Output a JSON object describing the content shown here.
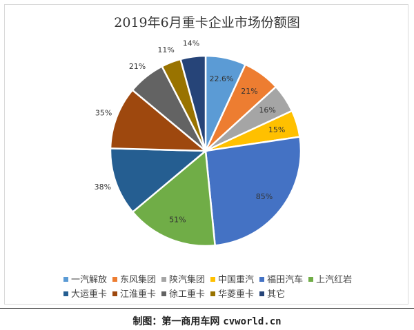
{
  "chart_data": {
    "type": "pie",
    "title": "2019年6月重卡企业市场份额图",
    "legend_position": "bottom",
    "slices": [
      {
        "name": "一汽解放",
        "value": 22.6,
        "label": "22.6%",
        "color": "#5B9BD5",
        "label_placement": "inside"
      },
      {
        "name": "东风集团",
        "value": 21,
        "label": "21%",
        "color": "#ED7D31",
        "label_placement": "inside"
      },
      {
        "name": "陕汽集团",
        "value": 16,
        "label": "16%",
        "color": "#A5A5A5",
        "label_placement": "inside"
      },
      {
        "name": "中国重汽",
        "value": 15,
        "label": "15%",
        "color": "#FFC000",
        "label_placement": "inside"
      },
      {
        "name": "福田汽车",
        "value": 85,
        "label": "85%",
        "color": "#4472C4",
        "label_placement": "inside"
      },
      {
        "name": "上汽红岩",
        "value": 51,
        "label": "51%",
        "color": "#70AD47",
        "label_placement": "inside"
      },
      {
        "name": "大运重卡",
        "value": 38,
        "label": "38%",
        "color": "#255E91",
        "label_placement": "outside"
      },
      {
        "name": "江淮重卡",
        "value": 35,
        "label": "35%",
        "color": "#9E480E",
        "label_placement": "outside"
      },
      {
        "name": "徐工重卡",
        "value": 21,
        "label": "21%",
        "color": "#636363",
        "label_placement": "outside"
      },
      {
        "name": "华菱重卡",
        "value": 11,
        "label": "11%",
        "color": "#997300",
        "label_placement": "outside"
      },
      {
        "name": "其它",
        "value": 14,
        "label": "14%",
        "color": "#264478",
        "label_placement": "outside"
      }
    ]
  },
  "credit": {
    "prefix": "制图：第一商用车网",
    "url": "cvworld.cn"
  }
}
